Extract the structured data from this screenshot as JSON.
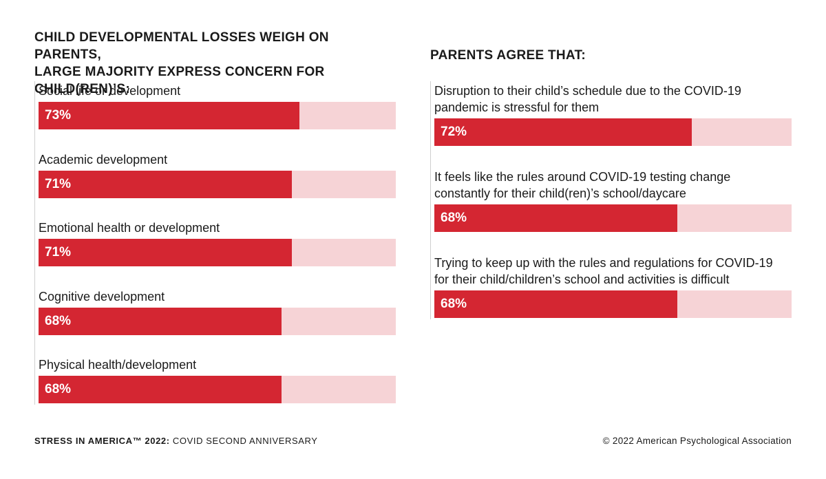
{
  "colors": {
    "bar_fill": "#d42632",
    "bar_track": "#f6d3d6"
  },
  "chart_data": [
    {
      "type": "bar",
      "orientation": "horizontal",
      "title": "CHILD DEVELOPMENTAL LOSSES WEIGH ON PARENTS, LARGE MAJORITY EXPRESS CONCERN FOR CHILD(REN)'S:",
      "title_lines": [
        "CHILD DEVELOPMENTAL LOSSES WEIGH ON PARENTS,",
        "LARGE MAJORITY EXPRESS CONCERN FOR CHILD(REN)’S:"
      ],
      "xlim": [
        0,
        100
      ],
      "categories": [
        "Social life or development",
        "Academic development",
        "Emotional health or development",
        "Cognitive development",
        "Physical health/development"
      ],
      "values": [
        73,
        71,
        71,
        68,
        68
      ],
      "value_labels": [
        "73%",
        "71%",
        "71%",
        "68%",
        "68%"
      ]
    },
    {
      "type": "bar",
      "orientation": "horizontal",
      "title": "PARENTS AGREE THAT:",
      "xlim": [
        0,
        100
      ],
      "categories": [
        [
          "Disruption to their child’s schedule due to the COVID-19",
          "pandemic is stressful for them"
        ],
        [
          "It feels like the rules around COVID-19 testing change",
          "constantly for their child(ren)’s school/daycare"
        ],
        [
          "Trying to keep up with the rules and regulations for COVID-19",
          "for their child/children’s school and activities is difficult"
        ]
      ],
      "values": [
        72,
        68,
        68
      ],
      "value_labels": [
        "72%",
        "68%",
        "68%"
      ]
    }
  ],
  "footer": {
    "left_bold": "STRESS IN AMERICA™ 2022:",
    "left_rest": " COVID SECOND ANNIVERSARY",
    "right": "© 2022 American Psychological Association"
  }
}
